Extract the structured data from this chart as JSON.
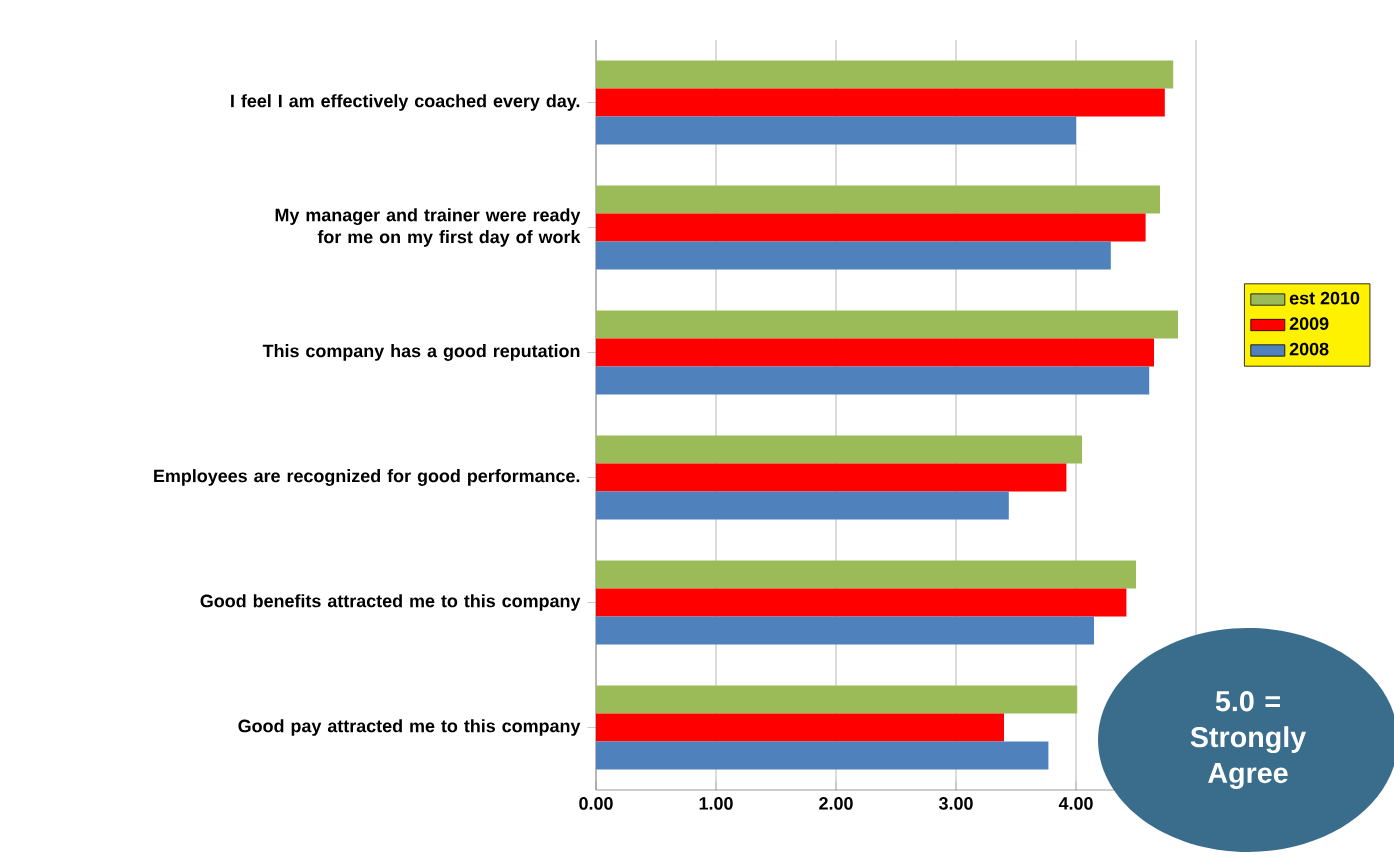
{
  "chart_data": {
    "type": "bar",
    "orientation": "horizontal",
    "categories": [
      "I feel I am effectively coached every day.",
      "My manager and trainer were ready for me on my first day of work",
      "This company has a good reputation",
      "Employees are recognized for good performance.",
      "Good benefits attracted me to this company",
      "Good pay attracted me to this company"
    ],
    "series": [
      {
        "name": "est 2010",
        "color": "#9bbb59",
        "values": [
          4.81,
          4.7,
          4.85,
          4.05,
          4.5,
          4.01
        ]
      },
      {
        "name": "2009",
        "color": "#ff0000",
        "values": [
          4.74,
          4.58,
          4.65,
          3.92,
          4.42,
          3.4
        ]
      },
      {
        "name": "2008",
        "color": "#4f81bd",
        "values": [
          4.0,
          4.29,
          4.61,
          3.44,
          4.15,
          3.77
        ]
      }
    ],
    "xlim": [
      0,
      5
    ],
    "xticks": [
      {
        "value": 0,
        "label": "0.00"
      },
      {
        "value": 1,
        "label": "1.00"
      },
      {
        "value": 2,
        "label": "2.00"
      },
      {
        "value": 3,
        "label": "3.00"
      },
      {
        "value": 4,
        "label": "4.00"
      },
      {
        "value": 5,
        "label": null
      }
    ],
    "grid": "x",
    "legend": "right",
    "annotations": [
      "5.0 = Strongly Agree"
    ]
  }
}
